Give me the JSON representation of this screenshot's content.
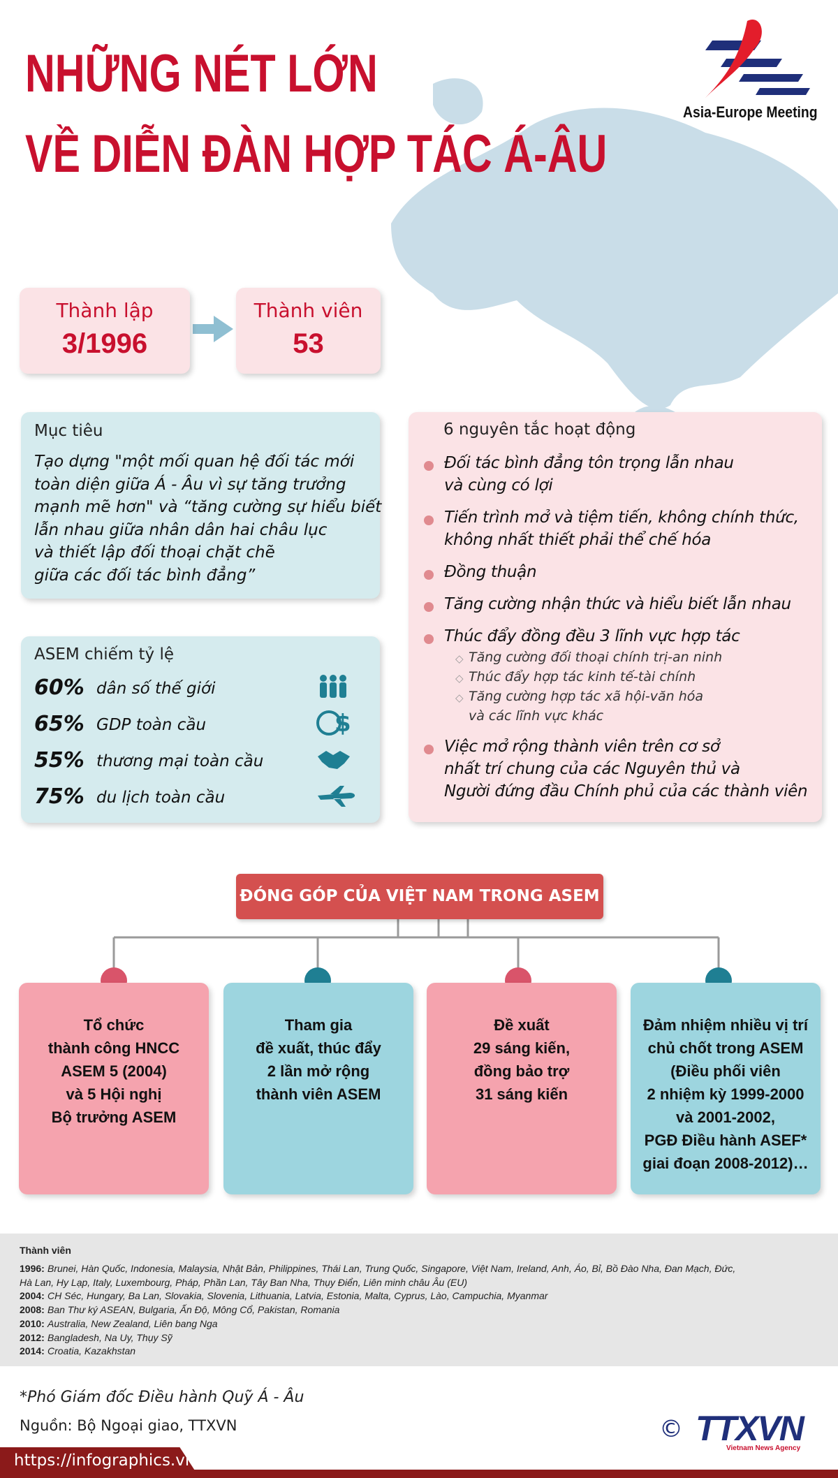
{
  "header": {
    "title_lines": [
      "NHỮNG NÉT LỚN",
      "VỀ DIỄN ĐÀN HỢP TÁC Á-ÂU"
    ],
    "logo_text": "Asia-Europe Meeting"
  },
  "stats": [
    {
      "label": "Thành lập",
      "value": "3/1996"
    },
    {
      "label": "Thành viên",
      "value": "53"
    }
  ],
  "goal": {
    "title": "Mục tiêu",
    "lines": [
      "Tạo dựng \"một mối quan hệ đối tác mới",
      "toàn diện giữa Á - Âu vì sự tăng trưởng",
      "mạnh mẽ hơn\" và “tăng cường sự hiểu biết",
      "lẫn nhau giữa nhân dân hai châu lục",
      "và thiết lập đối thoại chặt chẽ",
      "giữa các đối tác bình đẳng”"
    ]
  },
  "share": {
    "title": "ASEM chiếm tỷ lệ",
    "items": [
      {
        "percent": "60%",
        "label": "dân số thế giới"
      },
      {
        "percent": "65%",
        "label": "GDP toàn cầu"
      },
      {
        "percent": "55%",
        "label": "thương mại toàn cầu"
      },
      {
        "percent": "75%",
        "label": "du lịch toàn cầu"
      }
    ]
  },
  "principles": {
    "title": "6 nguyên tắc hoạt động",
    "items": [
      {
        "lines": [
          "Đối tác bình đẳng tôn trọng lẫn nhau",
          "và cùng có lợi"
        ]
      },
      {
        "lines": [
          "Tiến trình mở và tiệm tiến, không chính thức,",
          "không nhất thiết phải thể chế hóa"
        ]
      },
      {
        "lines": [
          "Đồng thuận"
        ]
      },
      {
        "lines": [
          "Tăng cường nhận thức và hiểu biết lẫn nhau"
        ]
      },
      {
        "lines": [
          "Thúc đẩy đồng đều 3 lĩnh vực hợp tác"
        ],
        "subitems": [
          {
            "lines": [
              "Tăng cường đối thoại chính trị-an ninh"
            ]
          },
          {
            "lines": [
              "Thúc đẩy hợp tác kinh tế-tài chính"
            ]
          },
          {
            "lines": [
              "Tăng cường hợp tác xã hội-văn hóa",
              "và các lĩnh vực khác"
            ]
          }
        ]
      },
      {
        "lines": [
          "Việc mở rộng thành viên trên cơ sở",
          "nhất trí chung của các Nguyên thủ và",
          "Người đứng đầu Chính phủ của các thành viên"
        ]
      }
    ]
  },
  "contribution": {
    "title": "ĐÓNG GÓP CỦA VIỆT NAM TRONG ASEM",
    "boxes": [
      {
        "lines": [
          "Tổ chức",
          "thành công HNCC",
          "ASEM 5 (2004)",
          "và 5 Hội nghị",
          "Bộ trưởng ASEM"
        ]
      },
      {
        "lines": [
          "Tham gia",
          "đề xuất, thúc đẩy",
          "2 lần mở rộng",
          "thành viên ASEM"
        ]
      },
      {
        "lines": [
          "Đề xuất",
          "29 sáng kiến,",
          "đồng bảo trợ",
          "31 sáng kiến"
        ]
      },
      {
        "lines": [
          "Đảm nhiệm nhiều vị trí",
          "chủ chốt trong ASEM",
          "(Điều phối viên",
          "2 nhiệm kỳ 1999-2000",
          "và 2001-2002,",
          "PGĐ Điều hành ASEF*",
          "giai đoạn 2008-2012)…"
        ]
      }
    ]
  },
  "members": {
    "title": "Thành viên",
    "rows": [
      {
        "year": "1996:",
        "lines": [
          "Brunei, Hàn Quốc, Indonesia, Malaysia, Nhật Bản, Philippines, Thái Lan, Trung Quốc, Singapore, Việt Nam, Ireland, Anh, Áo, Bỉ, Bồ Đào Nha, Đan Mạch, Đức,",
          "Hà Lan, Hy Lạp, Italy, Luxembourg, Pháp, Phần Lan, Tây Ban Nha, Thụy Điển, Liên minh châu Âu (EU)"
        ]
      },
      {
        "year": "2004:",
        "lines": [
          "CH Séc, Hungary, Ba Lan, Slovakia, Slovenia, Lithuania, Latvia, Estonia, Malta, Cyprus, Lào, Campuchia, Myanmar"
        ]
      },
      {
        "year": "2008:",
        "lines": [
          "Ban Thư ký ASEAN, Bulgaria, Ấn Độ, Mông Cổ, Pakistan, Romania"
        ]
      },
      {
        "year": "2010:",
        "lines": [
          "Australia, New Zealand, Liên bang Nga"
        ]
      },
      {
        "year": "2012:",
        "lines": [
          "Bangladesh, Na Uy, Thụy Sỹ"
        ]
      },
      {
        "year": "2014:",
        "lines": [
          "Croatia, Kazakhstan"
        ]
      }
    ]
  },
  "footer": {
    "footnote": "*Phó Giám đốc Điều hành Quỹ Á - Âu",
    "source": "Nguồn: Bộ Ngoại giao, TTXVN",
    "url": "https://infographics.vn",
    "copyright": "©",
    "agency": "TTXVN",
    "agency_name": "Vietnam News Agency"
  }
}
